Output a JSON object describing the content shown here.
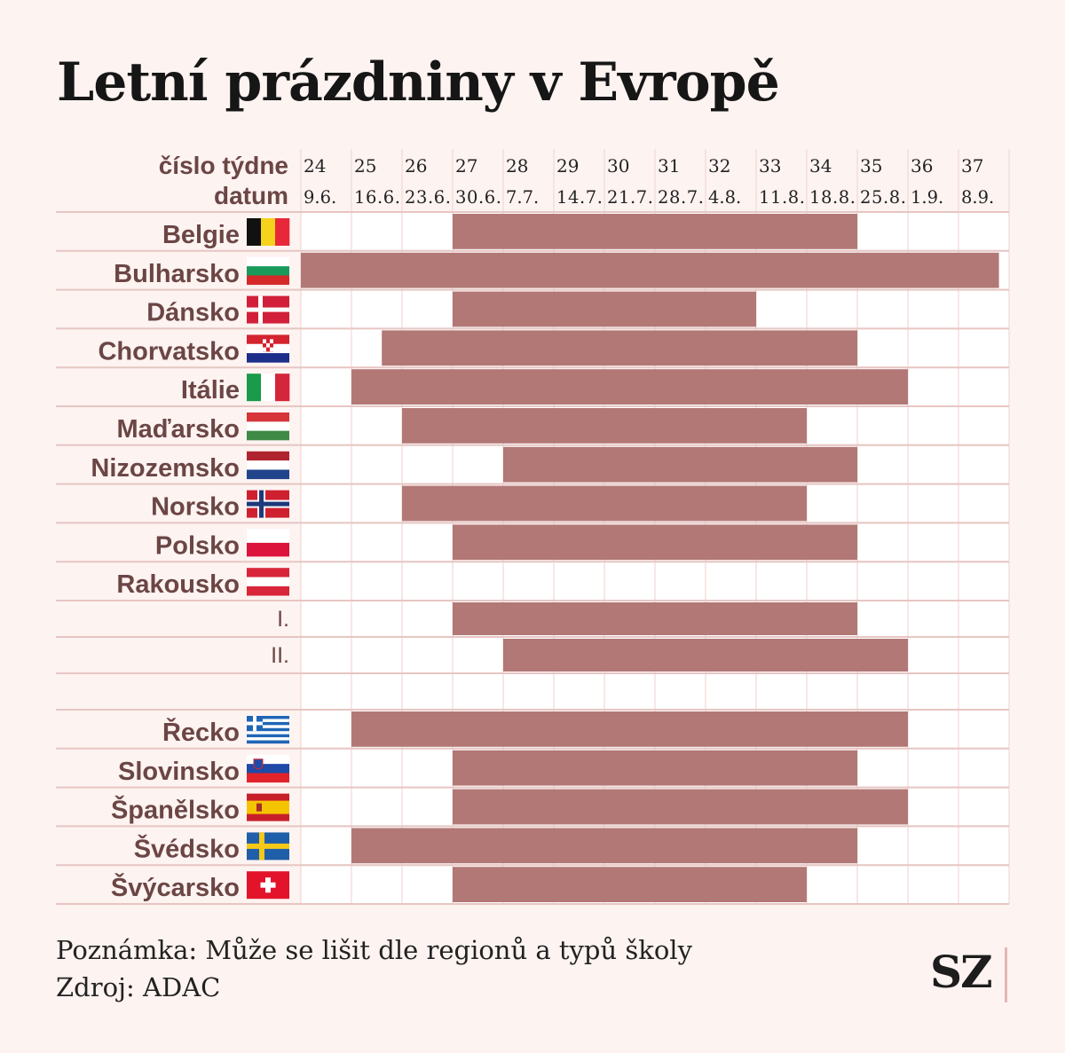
{
  "title": "Letní prázdniny v Evropě",
  "colors": {
    "bar": "#b27876",
    "label": "#6b4645",
    "grid": "#f0d9d6",
    "white_cell": "#ffffff",
    "row_line": "#e6c6c3"
  },
  "chart_data": {
    "type": "gantt",
    "header_labels": {
      "week": "číslo týdne",
      "date": "datum"
    },
    "weeks": [
      "24",
      "25",
      "26",
      "27",
      "28",
      "29",
      "30",
      "31",
      "32",
      "33",
      "34",
      "35",
      "36",
      "37"
    ],
    "dates": [
      "9.6.",
      "16.6.",
      "23.6.",
      "30.6.",
      "7.7.",
      "14.7.",
      "21.7.",
      "28.7.",
      "4.8.",
      "11.8.",
      "18.8.",
      "25.8.",
      "1.9.",
      "8.9."
    ],
    "rows": [
      {
        "label": "Belgie",
        "flag": "flag-belgium-icon",
        "start": 27,
        "end": 35
      },
      {
        "label": "Bulharsko",
        "flag": "flag-bulgaria-icon",
        "start": 23.8,
        "end": 37.8
      },
      {
        "label": "Dánsko",
        "flag": "flag-denmark-icon",
        "start": 27,
        "end": 33
      },
      {
        "label": "Chorvatsko",
        "flag": "flag-croatia-icon",
        "start": 25.6,
        "end": 35
      },
      {
        "label": "Itálie",
        "flag": "flag-italy-icon",
        "start": 25,
        "end": 36
      },
      {
        "label": "Maďarsko",
        "flag": "flag-hungary-icon",
        "start": 26,
        "end": 34
      },
      {
        "label": "Nizozemsko",
        "flag": "flag-netherlands-icon",
        "start": 28,
        "end": 35
      },
      {
        "label": "Norsko",
        "flag": "flag-norway-icon",
        "start": 26,
        "end": 34
      },
      {
        "label": "Polsko",
        "flag": "flag-poland-icon",
        "start": 27,
        "end": 35
      },
      {
        "label": "Rakousko",
        "flag": "flag-austria-icon",
        "start": null,
        "end": null
      },
      {
        "label": "I.",
        "flag": null,
        "sub": true,
        "start": 27,
        "end": 35
      },
      {
        "label": "II.",
        "flag": null,
        "sub": true,
        "start": 28,
        "end": 36
      },
      {
        "label": "",
        "flag": null,
        "spacer": true,
        "start": null,
        "end": null
      },
      {
        "label": "Řecko",
        "flag": "flag-greece-icon",
        "start": 25,
        "end": 36
      },
      {
        "label": "Slovinsko",
        "flag": "flag-slovenia-icon",
        "start": 27,
        "end": 35
      },
      {
        "label": "Španělsko",
        "flag": "flag-spain-icon",
        "start": 27,
        "end": 36
      },
      {
        "label": "Švédsko",
        "flag": "flag-sweden-icon",
        "start": 25,
        "end": 35
      },
      {
        "label": "Švýcarsko",
        "flag": "flag-switzerland-icon",
        "start": 27,
        "end": 34
      }
    ]
  },
  "footer": {
    "note": "Poznámka: Může se lišit dle regionů a typů školy",
    "source": "Zdroj:  ADAC",
    "logo": "SZ"
  }
}
